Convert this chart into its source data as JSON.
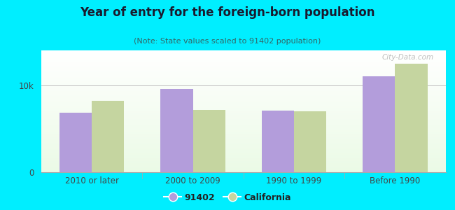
{
  "title": "Year of entry for the foreign-born population",
  "subtitle": "(Note: State values scaled to 91402 population)",
  "categories": [
    "2010 or later",
    "2000 to 2009",
    "1990 to 1999",
    "Before 1990"
  ],
  "values_91402": [
    6800,
    9600,
    7100,
    11000
  ],
  "values_california": [
    8200,
    7200,
    7000,
    12500
  ],
  "bar_color_91402": "#b39ddb",
  "bar_color_california": "#c5d5a0",
  "background_outer": "#00eeff",
  "yticks": [
    0,
    10000
  ],
  "ytick_labels": [
    "0",
    "10k"
  ],
  "ylim": [
    0,
    14000
  ],
  "legend_label_91402": "91402",
  "legend_label_california": "California",
  "watermark": "City-Data.com"
}
